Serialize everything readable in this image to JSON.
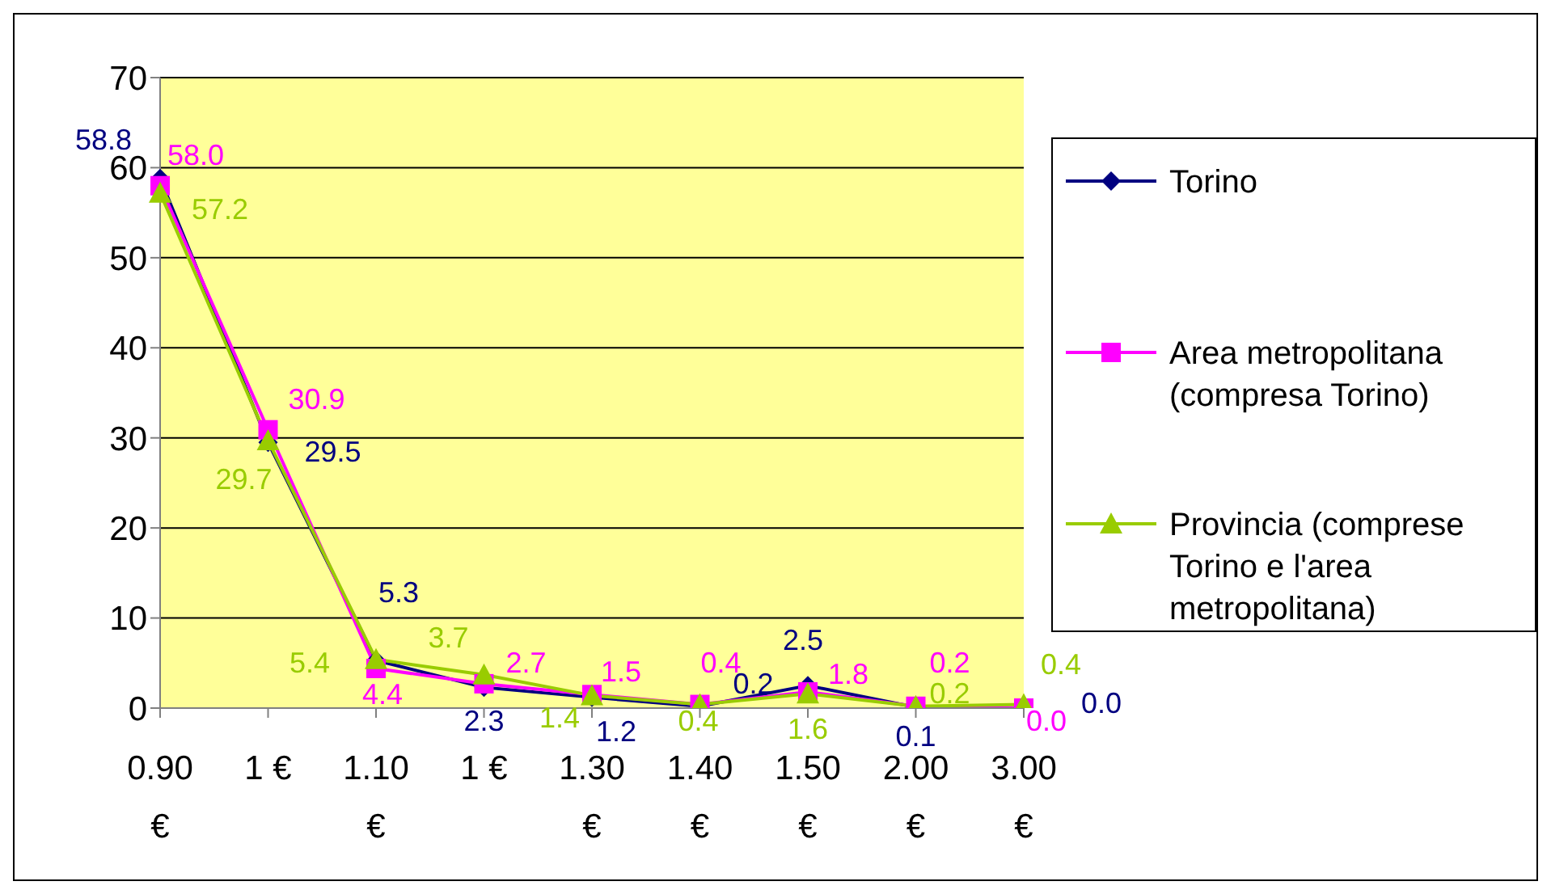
{
  "chart_data": {
    "type": "line",
    "categories": [
      "0.90 €",
      "1 €",
      "1.10 €",
      "1 €",
      "1.30 €",
      "1.40 €",
      "1.50 €",
      "2.00 €",
      "3.00 €"
    ],
    "ylim": [
      0,
      70
    ],
    "yticks": [
      0,
      10,
      20,
      30,
      40,
      50,
      60,
      70
    ],
    "grid": "y",
    "legend": "right",
    "series": [
      {
        "name": "Torino",
        "color": "#000080",
        "marker": "diamond",
        "values": [
          58.8,
          29.5,
          5.3,
          2.3,
          1.2,
          0.2,
          2.5,
          0.1,
          0.0
        ],
        "value_labels": [
          "58.8",
          "29.5",
          "5.3",
          "2.3",
          "1.2",
          "0.2",
          "2.5",
          "0.1",
          "0.0"
        ]
      },
      {
        "name": "Area metropolitana (compresa Torino)",
        "color": "#ff00ff",
        "marker": "square",
        "values": [
          58.0,
          30.9,
          4.4,
          2.7,
          1.5,
          0.4,
          1.8,
          0.2,
          0.0
        ],
        "value_labels": [
          "58.0",
          "30.9",
          "4.4",
          "2.7",
          "1.5",
          "0.4",
          "1.8",
          "0.2",
          "0.0"
        ]
      },
      {
        "name": "Provincia (comprese Torino e l'area metropolitana)",
        "color": "#99cc00",
        "marker": "triangle",
        "values": [
          57.2,
          29.7,
          5.4,
          3.7,
          1.4,
          0.4,
          1.6,
          0.2,
          0.4
        ],
        "value_labels": [
          "57.2",
          "29.7",
          "5.4",
          "3.7",
          "1.4",
          "0.4",
          "1.6",
          "0.2",
          "0.4"
        ]
      }
    ]
  }
}
